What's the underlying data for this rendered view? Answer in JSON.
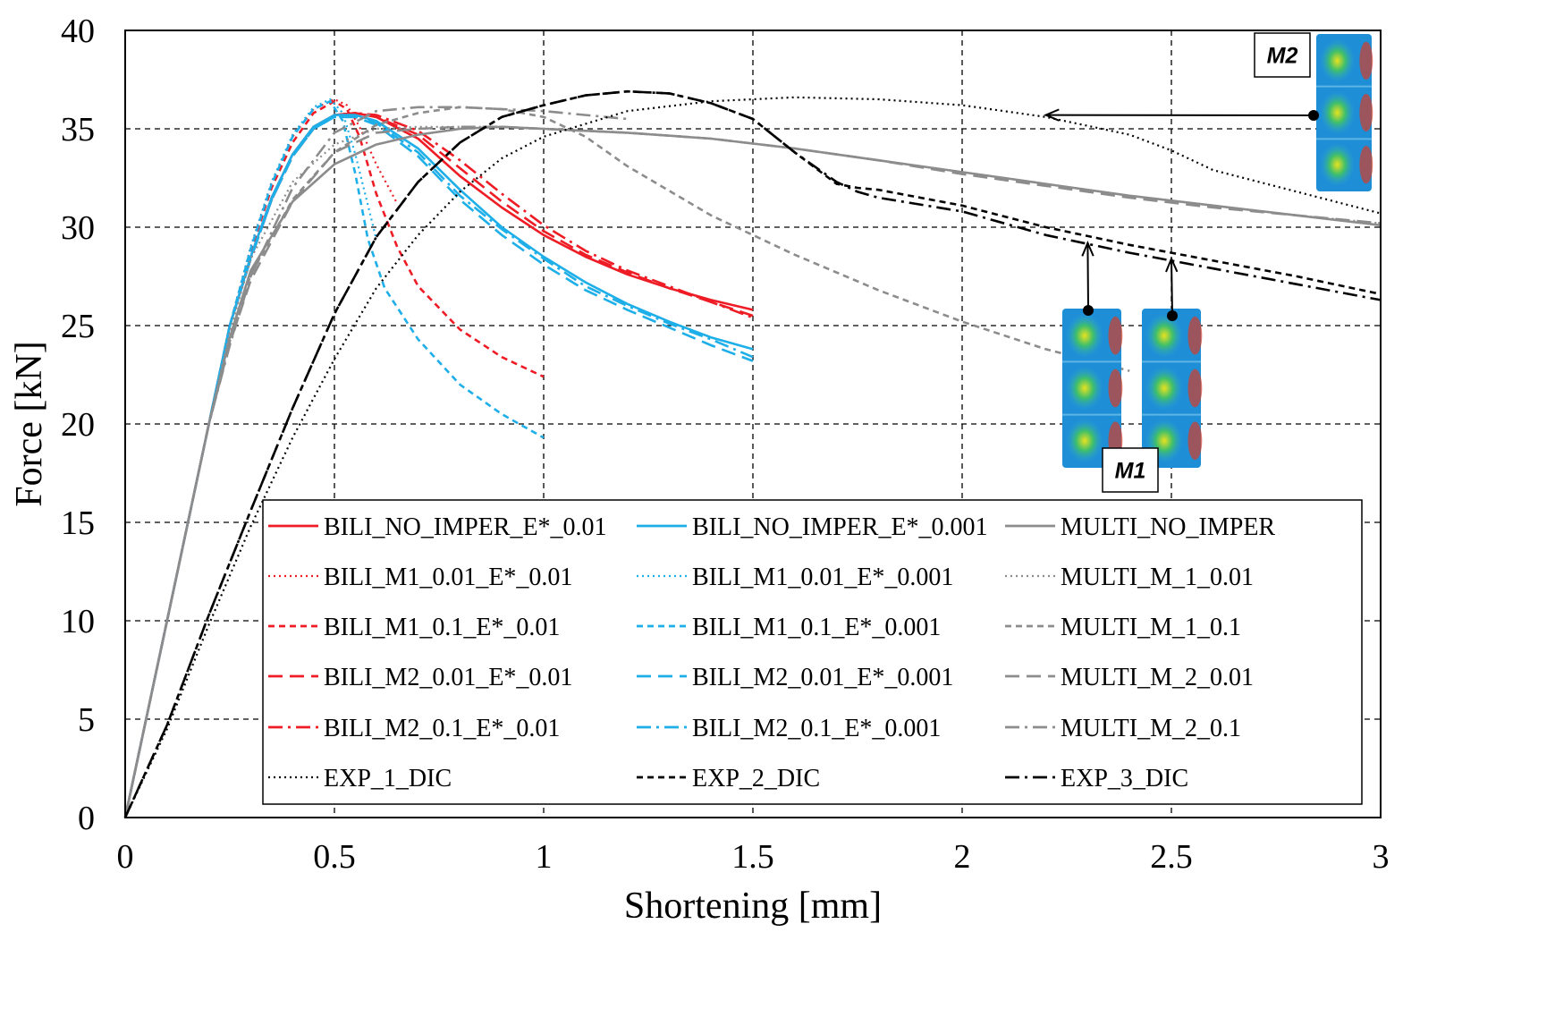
{
  "chart_data": {
    "type": "line",
    "xlabel": "Shortening [mm]",
    "ylabel": "Force [kN]",
    "xlim": [
      0,
      3
    ],
    "ylim": [
      0,
      40
    ],
    "xticks": [
      "0",
      "0.5",
      "1",
      "1.5",
      "2",
      "2.5",
      "3"
    ],
    "yticks": [
      "0",
      "5",
      "10",
      "15",
      "20",
      "25",
      "30",
      "35",
      "40"
    ],
    "grid": true,
    "legend_position": "bottom-inside",
    "colors": {
      "bili_e01": "#ee1c25",
      "bili_e001": "#1eaee8",
      "multi": "#8c8c8c",
      "exp": "#000000"
    },
    "annotations": [
      {
        "label": "M2",
        "target_x": 2.2,
        "target_y": 35.7
      },
      {
        "label": "M1",
        "target_x_list": [
          2.3,
          2.5
        ],
        "target_y_list": [
          29.2,
          28.4
        ]
      }
    ],
    "series": [
      {
        "name": "BILI_NO_IMPER_E*_0.01",
        "color": "#ee1c25",
        "dash": "solid",
        "x": [
          0,
          0.1,
          0.2,
          0.25,
          0.3,
          0.35,
          0.4,
          0.45,
          0.5,
          0.55,
          0.6,
          0.7,
          0.8,
          0.9,
          1.0,
          1.1,
          1.2,
          1.3,
          1.4,
          1.5
        ],
        "y": [
          0,
          10,
          20,
          25,
          28.5,
          31.5,
          33.7,
          35.1,
          35.7,
          35.8,
          35.6,
          34.5,
          32.6,
          31.0,
          29.6,
          28.5,
          27.6,
          26.9,
          26.3,
          25.8
        ]
      },
      {
        "name": "BILI_M1_0.01_E*_0.01",
        "color": "#ee1c25",
        "dash": "dot",
        "x": [
          0,
          0.1,
          0.2,
          0.25,
          0.3,
          0.35,
          0.4,
          0.45,
          0.5,
          0.53,
          0.56,
          0.6,
          0.65
        ],
        "y": [
          0,
          10,
          20,
          25,
          29,
          32.3,
          34.6,
          36.0,
          36.5,
          36.2,
          35.1,
          33.2,
          31.2
        ]
      },
      {
        "name": "BILI_M1_0.1_E*_0.01",
        "color": "#ee1c25",
        "dash": "dash-short",
        "x": [
          0,
          0.1,
          0.2,
          0.25,
          0.3,
          0.35,
          0.4,
          0.45,
          0.5,
          0.53,
          0.56,
          0.6,
          0.65,
          0.7,
          0.8,
          0.9,
          1.0
        ],
        "y": [
          0,
          10,
          20,
          25,
          28.8,
          32.0,
          34.3,
          35.8,
          36.4,
          36.0,
          34.6,
          31.7,
          29.0,
          27.0,
          24.8,
          23.4,
          22.4
        ]
      },
      {
        "name": "BILI_M2_0.01_E*_0.01",
        "color": "#ee1c25",
        "dash": "dash-long",
        "x": [
          0,
          0.1,
          0.2,
          0.25,
          0.3,
          0.35,
          0.4,
          0.45,
          0.5,
          0.55,
          0.6,
          0.7,
          0.8,
          0.9,
          1.0,
          1.1,
          1.2,
          1.3,
          1.4,
          1.5
        ],
        "y": [
          0,
          10,
          20,
          25,
          28.4,
          31.4,
          33.6,
          35.0,
          35.7,
          35.8,
          35.6,
          34.7,
          33.0,
          31.3,
          29.8,
          28.6,
          27.7,
          26.9,
          26.2,
          25.5
        ]
      },
      {
        "name": "BILI_M2_0.1_E*_0.01",
        "color": "#ee1c25",
        "dash": "dashdot",
        "x": [
          0,
          0.1,
          0.2,
          0.25,
          0.3,
          0.35,
          0.4,
          0.45,
          0.5,
          0.55,
          0.6,
          0.7,
          0.8,
          0.9,
          1.0,
          1.1,
          1.2,
          1.3,
          1.4,
          1.5
        ],
        "y": [
          0,
          10,
          20,
          25,
          28.4,
          31.4,
          33.6,
          35.0,
          35.7,
          35.8,
          35.7,
          34.9,
          33.4,
          31.7,
          30.1,
          28.8,
          27.8,
          27.0,
          26.2,
          25.4
        ]
      },
      {
        "name": "BILI_NO_IMPER_E*_0.001",
        "color": "#1eaee8",
        "dash": "solid",
        "x": [
          0,
          0.1,
          0.2,
          0.25,
          0.3,
          0.35,
          0.4,
          0.45,
          0.5,
          0.55,
          0.6,
          0.7,
          0.8,
          0.9,
          1.0,
          1.1,
          1.2,
          1.3,
          1.4,
          1.5
        ],
        "y": [
          0,
          10,
          20,
          25,
          28.5,
          31.5,
          33.7,
          35.1,
          35.7,
          35.7,
          35.4,
          34.0,
          31.9,
          30.0,
          28.5,
          27.2,
          26.1,
          25.2,
          24.4,
          23.8
        ]
      },
      {
        "name": "BILI_M1_0.01_E*_0.001",
        "color": "#1eaee8",
        "dash": "dot",
        "x": [
          0,
          0.1,
          0.2,
          0.25,
          0.3,
          0.35,
          0.4,
          0.45,
          0.49,
          0.52,
          0.55,
          0.6
        ],
        "y": [
          0,
          10,
          20,
          25,
          29,
          32.3,
          34.7,
          36.1,
          36.5,
          35.8,
          33.7,
          29.4
        ]
      },
      {
        "name": "BILI_M1_0.1_E*_0.001",
        "color": "#1eaee8",
        "dash": "dash-short",
        "x": [
          0,
          0.1,
          0.2,
          0.25,
          0.3,
          0.35,
          0.4,
          0.45,
          0.49,
          0.52,
          0.55,
          0.58,
          0.62,
          0.7,
          0.8,
          0.9,
          1.0
        ],
        "y": [
          0,
          10,
          20,
          25,
          28.9,
          32.2,
          34.6,
          36.0,
          36.4,
          35.4,
          32.7,
          29.4,
          26.9,
          24.3,
          22.0,
          20.5,
          19.3
        ]
      },
      {
        "name": "BILI_M2_0.01_E*_0.001",
        "color": "#1eaee8",
        "dash": "dash-long",
        "x": [
          0,
          0.1,
          0.2,
          0.25,
          0.3,
          0.35,
          0.4,
          0.45,
          0.5,
          0.55,
          0.6,
          0.7,
          0.8,
          0.9,
          1.0,
          1.1,
          1.2,
          1.3,
          1.4,
          1.5
        ],
        "y": [
          0,
          10,
          20,
          25,
          28.4,
          31.4,
          33.6,
          35.0,
          35.6,
          35.6,
          35.2,
          33.6,
          31.4,
          29.6,
          28.1,
          26.8,
          25.8,
          24.9,
          24.0,
          23.2
        ]
      },
      {
        "name": "BILI_M2_0.1_E*_0.001",
        "color": "#1eaee8",
        "dash": "dashdot",
        "x": [
          0,
          0.1,
          0.2,
          0.25,
          0.3,
          0.35,
          0.4,
          0.45,
          0.5,
          0.55,
          0.6,
          0.7,
          0.8,
          0.9,
          1.0,
          1.1,
          1.2,
          1.3,
          1.4,
          1.5
        ],
        "y": [
          0,
          10,
          20,
          25,
          28.4,
          31.4,
          33.6,
          35.0,
          35.6,
          35.6,
          35.3,
          33.8,
          31.6,
          29.9,
          28.4,
          27.0,
          26.0,
          25.1,
          24.3,
          23.4
        ]
      },
      {
        "name": "MULTI_NO_IMPER",
        "color": "#8c8c8c",
        "dash": "solid",
        "x": [
          0,
          0.1,
          0.2,
          0.25,
          0.3,
          0.4,
          0.5,
          0.6,
          0.7,
          0.8,
          0.9,
          1.0,
          1.2,
          1.4,
          1.6,
          1.8,
          2.0,
          2.2,
          2.4,
          2.6,
          2.8,
          3.0
        ],
        "y": [
          0,
          10,
          20,
          24.4,
          27.8,
          31.3,
          33.2,
          34.2,
          34.7,
          35.0,
          35.1,
          35.0,
          34.8,
          34.5,
          34.0,
          33.4,
          32.8,
          32.2,
          31.6,
          31.1,
          30.6,
          30.1
        ]
      },
      {
        "name": "MULTI_M_1_0.01",
        "color": "#8c8c8c",
        "dash": "dot",
        "x": [
          0,
          0.1,
          0.2,
          0.25,
          0.3,
          0.4,
          0.5,
          0.6,
          0.7,
          0.8,
          0.9,
          1.0,
          1.2,
          1.4,
          1.6,
          1.8,
          2.0,
          2.2,
          2.4,
          2.6,
          2.8,
          3.0
        ],
        "y": [
          0,
          10,
          20,
          24.7,
          28.4,
          32.3,
          34.2,
          35.0,
          35.1,
          35.1,
          35.1,
          35.0,
          34.8,
          34.5,
          34.0,
          33.4,
          32.8,
          32.2,
          31.6,
          31.1,
          30.6,
          30.2
        ]
      },
      {
        "name": "MULTI_M_1_0.1",
        "color": "#8c8c8c",
        "dash": "dash-short",
        "x": [
          0,
          0.1,
          0.2,
          0.25,
          0.3,
          0.4,
          0.5,
          0.6,
          0.7,
          0.8,
          0.9,
          1.0,
          1.1,
          1.2,
          1.4,
          1.6,
          1.8,
          2.0,
          2.2,
          2.4
        ],
        "y": [
          0,
          10,
          20,
          24.2,
          27.6,
          31.4,
          33.8,
          35.2,
          35.8,
          36.1,
          36.0,
          35.6,
          34.6,
          33.1,
          30.6,
          28.6,
          26.8,
          25.2,
          23.8,
          22.7
        ]
      },
      {
        "name": "MULTI_M_2_0.01",
        "color": "#8c8c8c",
        "dash": "dash-long",
        "x": [
          0,
          0.1,
          0.2,
          0.25,
          0.3,
          0.4,
          0.5,
          0.6,
          0.7,
          0.8,
          0.9,
          1.0,
          1.2,
          1.4,
          1.6,
          1.8,
          2.0,
          2.2,
          2.4,
          2.6,
          2.8,
          3.0
        ],
        "y": [
          0,
          10,
          20,
          24.1,
          27.3,
          31.3,
          33.8,
          34.8,
          35.0,
          35.1,
          35.1,
          35.0,
          34.8,
          34.5,
          34.0,
          33.4,
          32.7,
          32.1,
          31.5,
          31.0,
          30.6,
          30.2
        ]
      },
      {
        "name": "MULTI_M_2_0.1",
        "color": "#8c8c8c",
        "dash": "dashdot",
        "x": [
          0,
          0.1,
          0.2,
          0.25,
          0.3,
          0.4,
          0.5,
          0.6,
          0.7,
          0.8,
          0.9,
          1.0,
          1.2
        ],
        "y": [
          0,
          10,
          20,
          24.0,
          27.5,
          32.0,
          34.8,
          35.9,
          36.1,
          36.1,
          36.0,
          35.9,
          35.5
        ]
      },
      {
        "name": "EXP_1_DIC",
        "color": "#000000",
        "dash": "dot",
        "x": [
          0,
          0.1,
          0.2,
          0.3,
          0.4,
          0.5,
          0.6,
          0.7,
          0.8,
          0.9,
          1.0,
          1.2,
          1.4,
          1.6,
          1.8,
          2.0,
          2.2,
          2.4,
          2.5,
          2.6,
          2.8,
          3.0
        ],
        "y": [
          0,
          4.5,
          9.8,
          14.8,
          19.3,
          23.3,
          26.9,
          29.6,
          31.8,
          33.5,
          34.6,
          35.9,
          36.4,
          36.6,
          36.5,
          36.2,
          35.6,
          34.7,
          33.9,
          32.9,
          31.8,
          30.7
        ]
      },
      {
        "name": "EXP_2_DIC",
        "color": "#000000",
        "dash": "dash-short",
        "x": [
          0,
          0.1,
          0.2,
          0.3,
          0.4,
          0.5,
          0.6,
          0.7,
          0.8,
          0.9,
          1.0,
          1.1,
          1.2,
          1.3,
          1.4,
          1.5,
          1.6,
          1.7,
          1.75,
          1.8,
          2.0,
          2.2,
          2.4,
          2.6,
          2.8,
          3.0
        ],
        "y": [
          0,
          4.7,
          10.3,
          15.6,
          20.8,
          25.6,
          29.5,
          32.3,
          34.3,
          35.6,
          36.2,
          36.7,
          36.9,
          36.8,
          36.3,
          35.5,
          33.8,
          32.2,
          32.0,
          31.9,
          31.1,
          30.0,
          29.1,
          28.3,
          27.5,
          26.6
        ]
      },
      {
        "name": "EXP_3_DIC",
        "color": "#000000",
        "dash": "dashdot",
        "x": [
          0,
          0.1,
          0.2,
          0.3,
          0.4,
          0.5,
          0.6,
          0.7,
          0.8,
          0.9,
          1.0,
          1.1,
          1.2,
          1.3,
          1.4,
          1.5,
          1.6,
          1.7,
          1.75,
          1.8,
          2.0,
          2.2,
          2.4,
          2.6,
          2.8,
          3.0
        ],
        "y": [
          0,
          4.7,
          10.3,
          15.6,
          20.8,
          25.6,
          29.5,
          32.3,
          34.3,
          35.6,
          36.2,
          36.7,
          36.9,
          36.8,
          36.3,
          35.5,
          33.8,
          32.3,
          31.8,
          31.5,
          30.8,
          29.6,
          28.7,
          27.9,
          27.1,
          26.3
        ]
      }
    ]
  }
}
